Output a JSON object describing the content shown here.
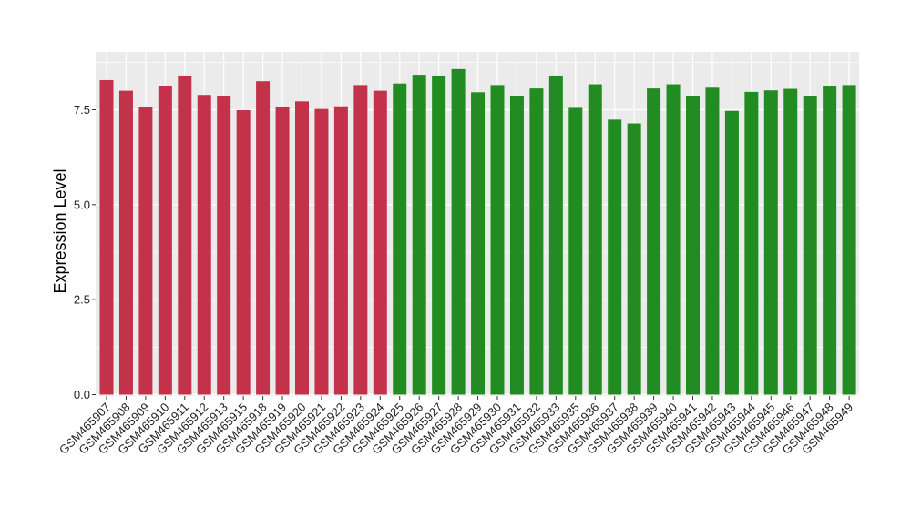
{
  "chart_data": {
    "type": "bar",
    "title": "",
    "xlabel": "",
    "ylabel": "Expression Level",
    "ylim": [
      0,
      9.0
    ],
    "yticks": [
      0.0,
      2.5,
      5.0,
      7.5
    ],
    "ytick_labels": [
      "0.0",
      "2.5",
      "5.0",
      "7.5"
    ],
    "grid": true,
    "legend": "none",
    "background": "#ebebeb",
    "gridline_color": "#ffffff",
    "group_colors": {
      "red": "#c3314a",
      "green": "#228b22"
    },
    "categories": [
      "GSM465907",
      "GSM465908",
      "GSM465909",
      "GSM465910",
      "GSM465911",
      "GSM465912",
      "GSM465913",
      "GSM465915",
      "GSM465918",
      "GSM465919",
      "GSM465920",
      "GSM465921",
      "GSM465922",
      "GSM465923",
      "GSM465924",
      "GSM465925",
      "GSM465926",
      "GSM465927",
      "GSM465928",
      "GSM465929",
      "GSM465930",
      "GSM465931",
      "GSM465932",
      "GSM465933",
      "GSM465935",
      "GSM465936",
      "GSM465937",
      "GSM465938",
      "GSM465939",
      "GSM465940",
      "GSM465941",
      "GSM465942",
      "GSM465943",
      "GSM465944",
      "GSM465945",
      "GSM465946",
      "GSM465947",
      "GSM465948",
      "GSM465949"
    ],
    "values": [
      8.28,
      8.0,
      7.57,
      8.13,
      8.4,
      7.89,
      7.87,
      7.49,
      8.25,
      7.57,
      7.72,
      7.52,
      7.59,
      8.15,
      8.0,
      8.19,
      8.42,
      8.4,
      8.57,
      7.96,
      8.15,
      7.87,
      8.06,
      8.4,
      7.55,
      8.17,
      7.24,
      7.14,
      8.06,
      8.17,
      7.85,
      8.08,
      7.47,
      7.97,
      8.01,
      8.05,
      7.85,
      8.11,
      8.15
    ],
    "bar_colors": [
      "red",
      "red",
      "red",
      "red",
      "red",
      "red",
      "red",
      "red",
      "red",
      "red",
      "red",
      "red",
      "red",
      "red",
      "red",
      "green",
      "green",
      "green",
      "green",
      "green",
      "green",
      "green",
      "green",
      "green",
      "green",
      "green",
      "green",
      "green",
      "green",
      "green",
      "green",
      "green",
      "green",
      "green",
      "green",
      "green",
      "green",
      "green",
      "green"
    ]
  }
}
